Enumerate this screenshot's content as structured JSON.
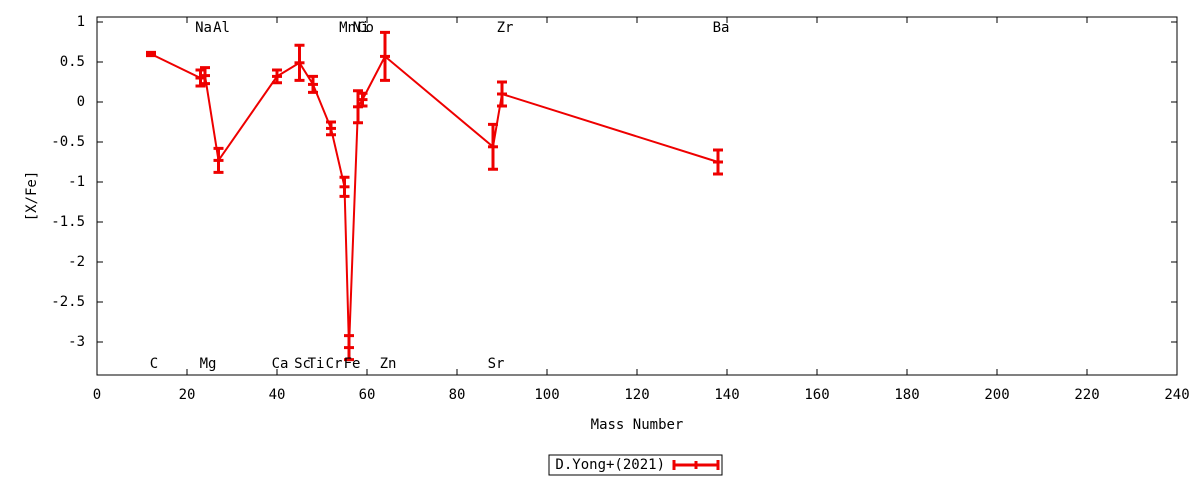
{
  "chart_data": {
    "type": "errorbar-line",
    "x_label": "Mass Number",
    "y_label": "[X/Fe]",
    "xlim": [
      0,
      240
    ],
    "ylim": [
      -3.4125,
      1.0625
    ],
    "xticks": [
      0,
      20,
      40,
      60,
      80,
      100,
      120,
      140,
      160,
      180,
      200,
      220,
      240
    ],
    "yticks": [
      -3,
      -2.5,
      -2,
      -1.5,
      -1,
      -0.5,
      0,
      0.5,
      1
    ],
    "legend": "bottom",
    "series": [
      {
        "name": "D.Yong+(2021)",
        "color": "#ee0000",
        "x": [
          12,
          23,
          24,
          27,
          40,
          45,
          48,
          52,
          55,
          56,
          58,
          59,
          64,
          88,
          90,
          138
        ],
        "values": [
          0.6,
          0.3,
          0.33,
          -0.73,
          0.32,
          0.49,
          0.22,
          -0.33,
          -1.06,
          -3.07,
          -0.06,
          0.03,
          0.57,
          -0.56,
          0.1,
          -0.75
        ],
        "errors": [
          0.02,
          0.1,
          0.1,
          0.15,
          0.08,
          0.22,
          0.1,
          0.08,
          0.12,
          0.15,
          0.2,
          0.08,
          0.3,
          0.28,
          0.15,
          0.15
        ],
        "labels": [
          "C",
          "Na",
          "Mg",
          "Al",
          "Ca",
          "Sc",
          "Ti",
          "Cr",
          "Mn",
          "Fe",
          "Ni",
          "Co",
          "Zn",
          "Sr",
          "Zr",
          "Ba"
        ],
        "label_rows": [
          "bottom",
          "top",
          "bottom",
          "top",
          "bottom",
          "bottom",
          "bottom",
          "bottom",
          "top",
          "bottom",
          "top",
          "top",
          "bottom",
          "bottom",
          "top",
          "top"
        ]
      }
    ]
  }
}
